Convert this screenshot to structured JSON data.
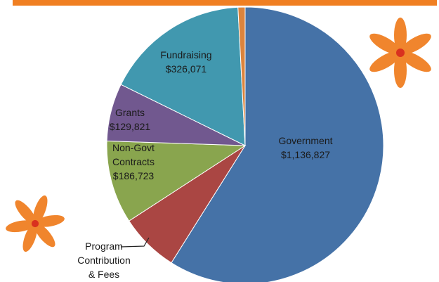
{
  "chart_data": {
    "type": "pie",
    "categories": [
      "Government",
      "Program Contribution & Fees",
      "Non-Govt Contracts",
      "Grants",
      "Fundraising",
      null
    ],
    "values": [
      1136827,
      133000,
      186723,
      129821,
      326071,
      16000
    ],
    "value_labels": [
      "$1,136,827",
      null,
      "$186,723",
      "$129,821",
      "$326,071",
      null
    ],
    "colors": [
      "#4572a7",
      "#aa4643",
      "#89a54e",
      "#71588f",
      "#4198af",
      "#db843d"
    ]
  }
}
